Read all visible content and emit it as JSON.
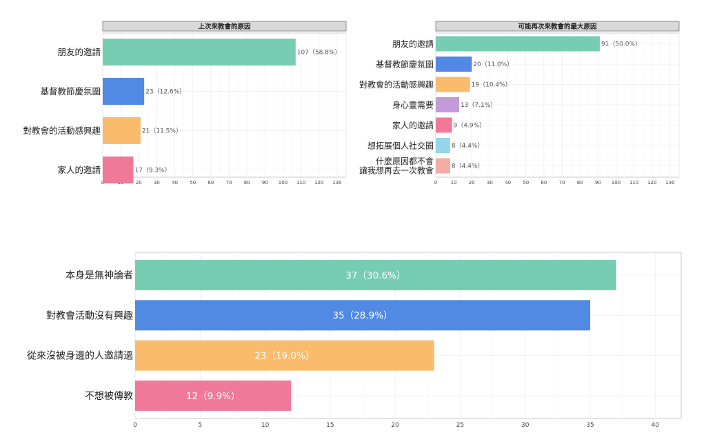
{
  "chart_data": [
    {
      "type": "bar",
      "orientation": "horizontal",
      "title": "上次來教會的原因",
      "categories": [
        "朋友的邀請",
        "基督教節慶氛圍",
        "對教會的活動感興趣",
        "家人的邀請"
      ],
      "values": [
        107,
        23,
        21,
        17
      ],
      "data_labels": [
        "107（58.8%）",
        "23（12.6%）",
        "21（11.5%）",
        "17（9.3%）"
      ],
      "colors": [
        "#76cdb2",
        "#5189e4",
        "#fbbb6c",
        "#f07899"
      ],
      "xlim": [
        0,
        135
      ],
      "xticks": [
        0,
        10,
        20,
        30,
        40,
        50,
        60,
        70,
        80,
        90,
        100,
        110,
        120,
        130
      ],
      "grid": true,
      "label_position": "outside"
    },
    {
      "type": "bar",
      "orientation": "horizontal",
      "title": "可能再次來教會的最大原因",
      "categories": [
        "朋友的邀請",
        "基督教節慶氛圍",
        "對教會的活動感興趣",
        "身心靈需要",
        "家人的邀請",
        "想拓展個人社交圈",
        "什麼原因都不會\n讓我想再去一次教會"
      ],
      "values": [
        91,
        20,
        19,
        13,
        9,
        8,
        8
      ],
      "data_labels": [
        "91（50.0%）",
        "20（11.0%）",
        "19（10.4%）",
        "13（7.1%）",
        "9（4.9%）",
        "8（4.4%）",
        "8（4.4%）"
      ],
      "colors": [
        "#76cdb2",
        "#5189e4",
        "#fbbb6c",
        "#c29bd8",
        "#f07899",
        "#96d5ea",
        "#f3aca3"
      ],
      "xlim": [
        0,
        135
      ],
      "xticks": [
        0,
        10,
        20,
        30,
        40,
        50,
        60,
        70,
        80,
        90,
        100,
        110,
        120,
        130
      ],
      "grid": true,
      "label_position": "outside"
    },
    {
      "type": "bar",
      "orientation": "horizontal",
      "title": "",
      "categories": [
        "本身是無神論者",
        "對教會活動沒有興趣",
        "從來沒被身邊的人邀請過",
        "不想被傳教"
      ],
      "values": [
        37,
        35,
        23,
        12
      ],
      "data_labels": [
        "37（30.6%）",
        "35（28.9%）",
        "23（19.0%）",
        "12（9.9%）"
      ],
      "colors": [
        "#76cdb2",
        "#5189e4",
        "#fbbb6c",
        "#f07899"
      ],
      "xlim": [
        0,
        42
      ],
      "xticks": [
        0,
        5,
        10,
        15,
        20,
        25,
        30,
        35,
        40
      ],
      "grid": true,
      "label_position": "inside"
    }
  ]
}
